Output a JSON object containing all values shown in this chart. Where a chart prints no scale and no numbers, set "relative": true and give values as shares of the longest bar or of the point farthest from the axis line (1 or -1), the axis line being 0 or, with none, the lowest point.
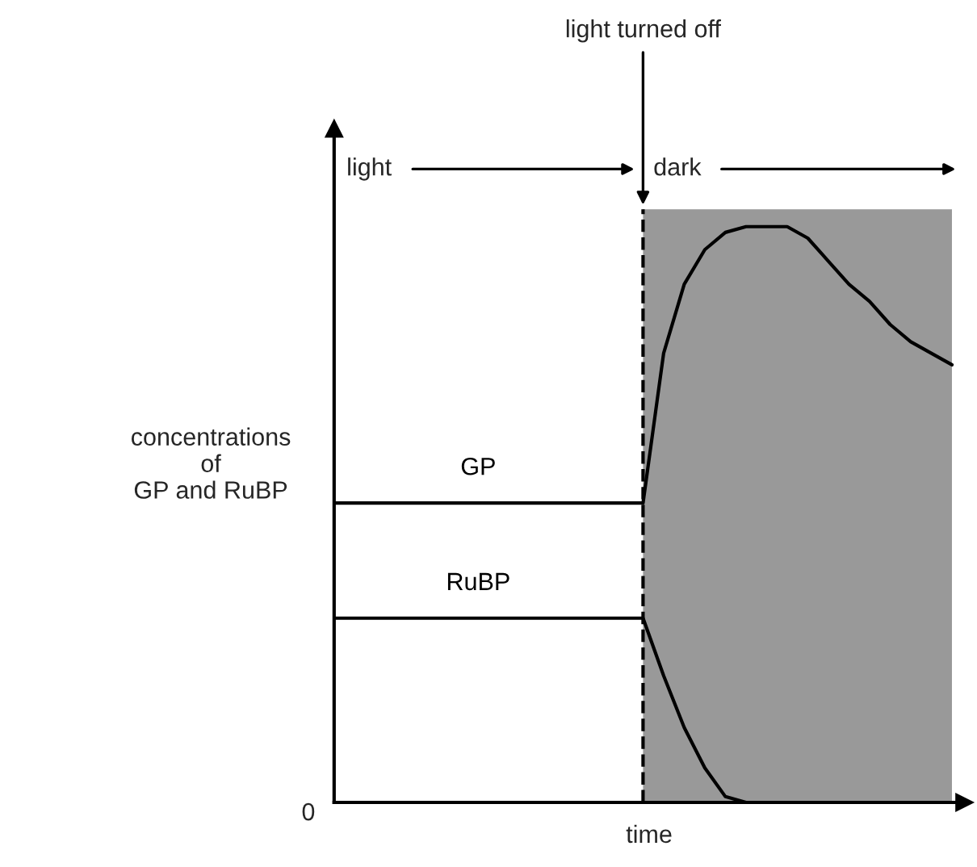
{
  "chart_data": {
    "type": "line",
    "relative": true,
    "xlabel": "time",
    "ylabel": "concentrations\nof\nGP and RuBP",
    "categories": [
      null,
      null,
      null,
      null,
      null,
      null,
      null,
      null,
      null,
      null,
      null,
      null,
      null,
      null,
      null,
      null,
      null,
      null,
      null,
      null,
      null,
      null,
      null,
      null,
      null,
      null,
      null,
      null,
      null,
      null,
      null
    ],
    "series": [
      {
        "name": "GP",
        "color": "#000000",
        "values": [
          0.52,
          0.52,
          0.52,
          0.52,
          0.52,
          0.52,
          0.52,
          0.52,
          0.52,
          0.52,
          0.52,
          0.52,
          0.52,
          0.52,
          0.52,
          0.52,
          0.78,
          0.9,
          0.96,
          0.99,
          1.0,
          1.0,
          1.0,
          0.98,
          0.94,
          0.9,
          0.87,
          0.83,
          0.8,
          0.78,
          0.76
        ]
      },
      {
        "name": "RuBP",
        "color": "#000000",
        "values": [
          0.32,
          0.32,
          0.32,
          0.32,
          0.32,
          0.32,
          0.32,
          0.32,
          0.32,
          0.32,
          0.32,
          0.32,
          0.32,
          0.32,
          0.32,
          0.32,
          0.22,
          0.13,
          0.06,
          0.01,
          0.0,
          null,
          null,
          null,
          null,
          null,
          null,
          null,
          null,
          null,
          null
        ]
      }
    ],
    "annotations": [
      "light turned off",
      "light",
      "dark",
      "0"
    ],
    "legend": false,
    "marker": "none",
    "line_style": "solid"
  }
}
